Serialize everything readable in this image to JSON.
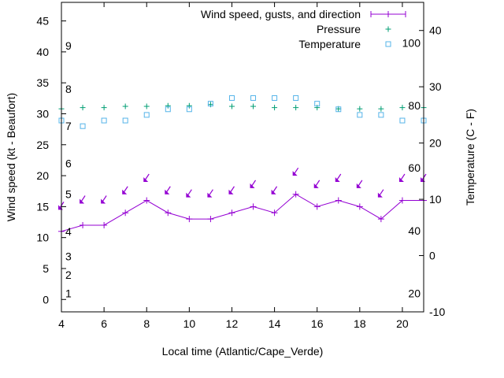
{
  "chart_data": {
    "type": "line",
    "xlabel": "Local time (Atlantic/Cape_Verde)",
    "ylabel_left": "Wind speed (kt - Beaufort)",
    "ylabel_right": "Temperature (C - F)",
    "xlim": [
      4,
      21
    ],
    "ylim_left": [
      -2,
      48
    ],
    "ylim_right": [
      -10,
      45
    ],
    "x_ticks": [
      "4",
      "6",
      "8",
      "10",
      "12",
      "14",
      "16",
      "18",
      "20"
    ],
    "y_left_ticks": [
      "0",
      "5",
      "10",
      "15",
      "20",
      "25",
      "30",
      "35",
      "40",
      "45"
    ],
    "y_right_ticks": [
      "-10",
      "0",
      "10",
      "20",
      "30",
      "40"
    ],
    "beaufort_labels": [
      {
        "label": "1",
        "kt": 1
      },
      {
        "label": "2",
        "kt": 4
      },
      {
        "label": "3",
        "kt": 7
      },
      {
        "label": "4",
        "kt": 11
      },
      {
        "label": "5",
        "kt": 17
      },
      {
        "label": "6",
        "kt": 22
      },
      {
        "label": "7",
        "kt": 28
      },
      {
        "label": "8",
        "kt": 34
      },
      {
        "label": "9",
        "kt": 41
      }
    ],
    "fahrenheit_labels": [
      {
        "label": "20",
        "celsius": -6.7
      },
      {
        "label": "40",
        "celsius": 4.4
      },
      {
        "label": "60",
        "celsius": 15.6
      },
      {
        "label": "80",
        "celsius": 26.7
      },
      {
        "label": "100",
        "celsius": 37.8
      }
    ],
    "legend_position": "top-right",
    "series": [
      {
        "name": "Wind speed, gusts, and direction",
        "color": "#9400d3",
        "x": [
          4,
          5,
          6,
          7,
          8,
          9,
          10,
          11,
          12,
          13,
          14,
          15,
          16,
          17,
          18,
          19,
          20,
          21
        ],
        "values": [
          11,
          12,
          12,
          14,
          16,
          14,
          13,
          13,
          14,
          15,
          14,
          17,
          15,
          16,
          15,
          13,
          16,
          16
        ],
        "gusts": [
          15,
          16,
          16,
          17.5,
          19.5,
          17.5,
          17,
          17,
          17.5,
          18.5,
          17.5,
          20.5,
          18.5,
          19.5,
          18.5,
          17,
          19.5,
          19.5
        ]
      },
      {
        "name": "Pressure",
        "color": "#009e73",
        "x": [
          4,
          5,
          6,
          7,
          8,
          9,
          10,
          11,
          12,
          13,
          14,
          15,
          16,
          17,
          18,
          19,
          20,
          21
        ],
        "values": [
          30.8,
          31,
          31,
          31.2,
          31.2,
          31.3,
          31.3,
          31.5,
          31.2,
          31.2,
          31,
          31,
          31,
          30.8,
          30.8,
          30.8,
          31,
          31
        ]
      },
      {
        "name": "Temperature",
        "color": "#56b4e9",
        "x": [
          4,
          5,
          6,
          7,
          8,
          9,
          10,
          11,
          12,
          13,
          14,
          15,
          16,
          17,
          18,
          19,
          20,
          21
        ],
        "values": [
          24,
          23,
          24,
          24,
          25,
          26,
          26,
          27,
          28,
          28,
          28,
          28,
          27,
          26,
          25,
          25,
          24,
          24
        ]
      }
    ]
  }
}
